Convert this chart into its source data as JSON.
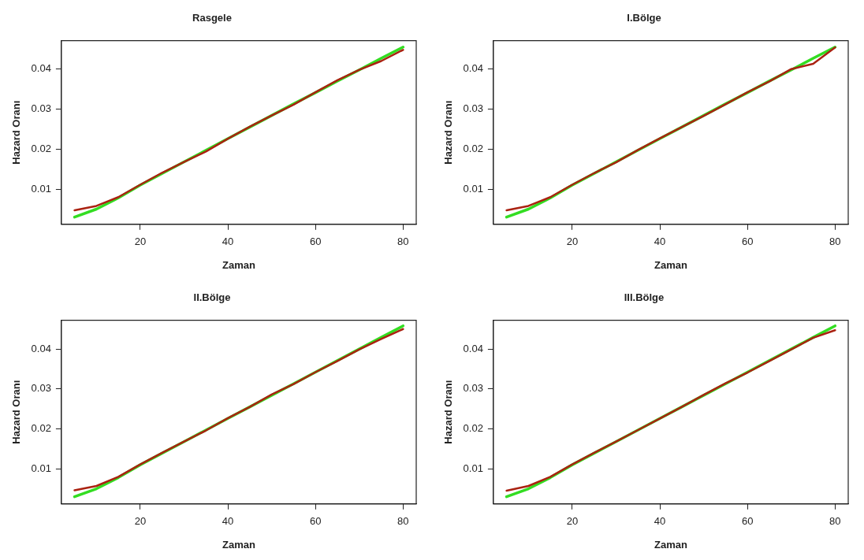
{
  "chart_data": [
    {
      "type": "line",
      "title": "Rasgele",
      "xlabel": "Zaman",
      "ylabel": "Hazard Oranı",
      "x": [
        5,
        10,
        15,
        20,
        25,
        30,
        35,
        40,
        45,
        50,
        55,
        60,
        65,
        70,
        75,
        80
      ],
      "xlim": [
        2,
        83
      ],
      "ylim": [
        0.0012,
        0.0471
      ],
      "xticks": [
        20,
        40,
        60,
        80
      ],
      "yticks": [
        0.01,
        0.02,
        0.03,
        0.04
      ],
      "grid": false,
      "legend": false,
      "marker": "none",
      "line_style": "solid",
      "series": [
        {
          "color": "#33dd22",
          "values": [
            0.003,
            0.005,
            0.0078,
            0.011,
            0.0139,
            0.0168,
            0.0197,
            0.0226,
            0.0255,
            0.0284,
            0.0313,
            0.0341,
            0.037,
            0.0398,
            0.0427,
            0.0455
          ]
        },
        {
          "color": "#aa2211",
          "values": [
            0.0047,
            0.0058,
            0.008,
            0.0111,
            0.0141,
            0.0168,
            0.0194,
            0.0226,
            0.0256,
            0.0284,
            0.0311,
            0.0342,
            0.0372,
            0.0398,
            0.042,
            0.0448
          ]
        }
      ]
    },
    {
      "type": "line",
      "title": "I.Bölge",
      "xlabel": "Zaman",
      "ylabel": "Hazard Oranı",
      "x": [
        5,
        10,
        15,
        20,
        25,
        30,
        35,
        40,
        45,
        50,
        55,
        60,
        65,
        70,
        75,
        80
      ],
      "xlim": [
        2,
        83
      ],
      "ylim": [
        0.0012,
        0.0471
      ],
      "xticks": [
        20,
        40,
        60,
        80
      ],
      "yticks": [
        0.01,
        0.02,
        0.03,
        0.04
      ],
      "grid": false,
      "legend": false,
      "marker": "none",
      "line_style": "solid",
      "series": [
        {
          "color": "#33dd22",
          "values": [
            0.003,
            0.005,
            0.0078,
            0.011,
            0.0139,
            0.0168,
            0.0197,
            0.0226,
            0.0255,
            0.0284,
            0.0313,
            0.0341,
            0.037,
            0.0398,
            0.0427,
            0.0455
          ]
        },
        {
          "color": "#aa2211",
          "values": [
            0.0047,
            0.0058,
            0.008,
            0.0111,
            0.014,
            0.0167,
            0.0198,
            0.0227,
            0.0255,
            0.0283,
            0.0312,
            0.0342,
            0.0369,
            0.04,
            0.0413,
            0.0454
          ]
        }
      ]
    },
    {
      "type": "line",
      "title": "II.Bölge",
      "xlabel": "Zaman",
      "ylabel": "Hazard Oranı",
      "x": [
        5,
        10,
        15,
        20,
        25,
        30,
        35,
        40,
        45,
        50,
        55,
        60,
        65,
        70,
        75,
        80
      ],
      "xlim": [
        2,
        83
      ],
      "ylim": [
        0.0012,
        0.0472
      ],
      "xticks": [
        20,
        40,
        60,
        80
      ],
      "yticks": [
        0.01,
        0.02,
        0.03,
        0.04
      ],
      "grid": false,
      "legend": false,
      "marker": "none",
      "line_style": "solid",
      "series": [
        {
          "color": "#33dd22",
          "values": [
            0.003,
            0.005,
            0.0078,
            0.011,
            0.0139,
            0.0168,
            0.0197,
            0.0226,
            0.0255,
            0.0284,
            0.0313,
            0.0342,
            0.0371,
            0.04,
            0.0429,
            0.0458
          ]
        },
        {
          "color": "#aa2211",
          "values": [
            0.0046,
            0.0057,
            0.008,
            0.0111,
            0.014,
            0.0168,
            0.0196,
            0.0227,
            0.0255,
            0.0286,
            0.0312,
            0.0342,
            0.037,
            0.0399,
            0.0425,
            0.045
          ]
        }
      ]
    },
    {
      "type": "line",
      "title": "III.Bölge",
      "xlabel": "Zaman",
      "ylabel": "Hazard Oranı",
      "x": [
        5,
        10,
        15,
        20,
        25,
        30,
        35,
        40,
        45,
        50,
        55,
        60,
        65,
        70,
        75,
        80
      ],
      "xlim": [
        2,
        83
      ],
      "ylim": [
        0.0012,
        0.0472
      ],
      "xticks": [
        20,
        40,
        60,
        80
      ],
      "yticks": [
        0.01,
        0.02,
        0.03,
        0.04
      ],
      "grid": false,
      "legend": false,
      "marker": "none",
      "line_style": "solid",
      "series": [
        {
          "color": "#33dd22",
          "values": [
            0.003,
            0.005,
            0.0078,
            0.011,
            0.0139,
            0.0168,
            0.0197,
            0.0226,
            0.0255,
            0.0284,
            0.0313,
            0.0342,
            0.0371,
            0.04,
            0.0429,
            0.0458
          ]
        },
        {
          "color": "#aa2211",
          "values": [
            0.0045,
            0.0057,
            0.008,
            0.0111,
            0.014,
            0.0168,
            0.0197,
            0.0226,
            0.0255,
            0.0285,
            0.0314,
            0.0341,
            0.037,
            0.0399,
            0.0428,
            0.0447
          ]
        }
      ]
    }
  ]
}
